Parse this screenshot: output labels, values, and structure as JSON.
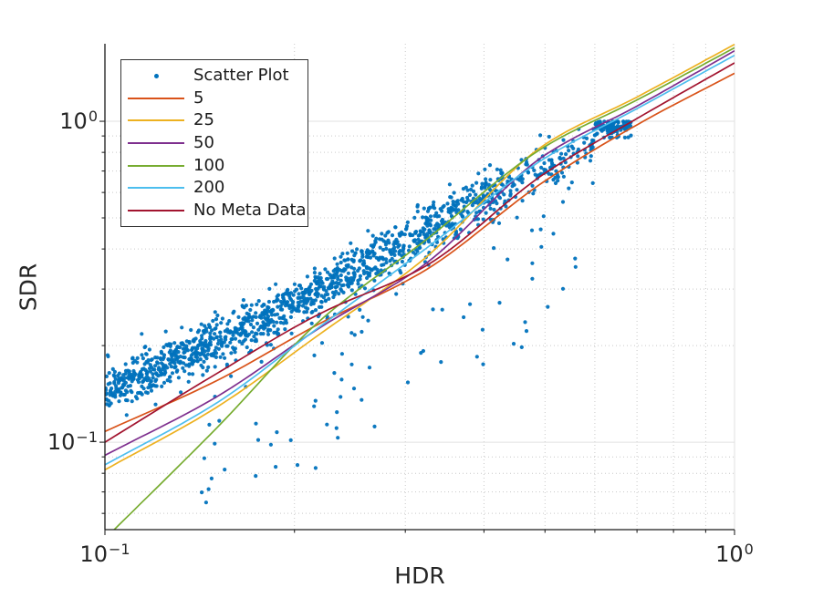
{
  "chart_data": {
    "type": "scatter",
    "xlabel": "HDR",
    "ylabel": "SDR",
    "xscale": "log",
    "yscale": "log",
    "xlim": [
      0.1,
      1.0
    ],
    "ylim": [
      0.0534,
      1.744
    ],
    "grid": {
      "major_color": "#e0e0e0",
      "minor_color": "#c9c9c9",
      "minor_style": "dotted",
      "spine_color": "#1a1a1a",
      "tick_color": "#262626"
    },
    "x_ticks": {
      "major": [
        {
          "v": 0.1,
          "base": "10",
          "exp": "−1"
        },
        {
          "v": 1.0,
          "base": "10",
          "exp": "0"
        }
      ],
      "minor": [
        0.2,
        0.3,
        0.4,
        0.5,
        0.6,
        0.7,
        0.8,
        0.9
      ]
    },
    "y_ticks": {
      "major": [
        {
          "v": 0.1,
          "base": "10",
          "exp": "−1"
        },
        {
          "v": 1.0,
          "base": "10",
          "exp": "0"
        }
      ],
      "minor": [
        0.06,
        0.07,
        0.08,
        0.09,
        0.2,
        0.3,
        0.4,
        0.5,
        0.6,
        0.7,
        0.8,
        0.9
      ]
    },
    "anchor_x": [
      0.1,
      0.15,
      0.22,
      0.32,
      0.5,
      0.7,
      1.0
    ],
    "series": [
      {
        "name": "5",
        "color": "#D95319",
        "y": [
          0.108,
          0.155,
          0.235,
          0.34,
          0.652,
          0.975,
          1.411
        ]
      },
      {
        "name": "25",
        "color": "#EDB120",
        "y": [
          0.082,
          0.128,
          0.218,
          0.37,
          0.847,
          1.19,
          1.736
        ]
      },
      {
        "name": "50",
        "color": "#7E2F8E",
        "y": [
          0.091,
          0.138,
          0.228,
          0.355,
          0.785,
          1.115,
          1.658
        ]
      },
      {
        "name": "100",
        "color": "#77AC30",
        "y": [
          0.05,
          0.11,
          0.24,
          0.42,
          0.834,
          1.165,
          1.695
        ]
      },
      {
        "name": "200",
        "color": "#4DBEEE",
        "y": [
          0.085,
          0.132,
          0.23,
          0.395,
          0.768,
          1.095,
          1.605
        ]
      },
      {
        "name": "No Meta Data",
        "color": "#A2142F",
        "y": [
          0.1,
          0.163,
          0.252,
          0.35,
          0.689,
          1.02,
          1.52
        ]
      }
    ],
    "scatter": {
      "name": "Scatter Plot",
      "color": "#0072BD",
      "point_radius": 2.1,
      "seed": 20240613,
      "band_x": [
        0.1,
        0.15,
        0.2,
        0.3,
        0.4,
        0.5,
        0.6,
        0.68
      ],
      "band_y": [
        0.145,
        0.205,
        0.27,
        0.42,
        0.58,
        0.72,
        0.86,
        0.95
      ],
      "groups": [
        {
          "type": "band",
          "n": 1250,
          "logx": [
            -1.0,
            -0.368
          ],
          "spread": 0.038
        },
        {
          "type": "band",
          "n": 130,
          "logx": [
            -0.368,
            -0.222
          ],
          "spread": 0.035
        },
        {
          "type": "cluster",
          "n": 120,
          "xrange": [
            0.6,
            0.685
          ],
          "center": 0.955,
          "spread": 0.016,
          "ymin": 0.89,
          "ymax": 0.998
        },
        {
          "type": "outlier",
          "n": 85,
          "logx": [
            -0.85,
            -0.25
          ],
          "drop": [
            0.08,
            0.55
          ]
        }
      ]
    },
    "legend": {
      "entries": [
        {
          "label": "Scatter Plot",
          "marker": "dot",
          "color": "#0072BD"
        },
        {
          "label": "5",
          "marker": "line",
          "color": "#D95319"
        },
        {
          "label": "25",
          "marker": "line",
          "color": "#EDB120"
        },
        {
          "label": "50",
          "marker": "line",
          "color": "#7E2F8E"
        },
        {
          "label": "100",
          "marker": "line",
          "color": "#77AC30"
        },
        {
          "label": "200",
          "marker": "line",
          "color": "#4DBEEE"
        },
        {
          "label": "No Meta Data",
          "marker": "line",
          "color": "#A2142F"
        }
      ]
    }
  }
}
